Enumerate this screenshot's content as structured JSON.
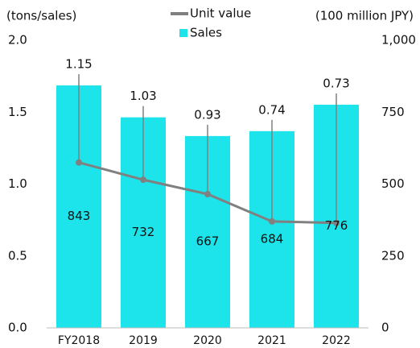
{
  "chart_data": {
    "type": "bar_line",
    "y_label": "(tons/sales)",
    "y2_label": "(100 million JPY)",
    "categories": [
      "FY2018",
      "2019",
      "2020",
      "2021",
      "2022"
    ],
    "series": [
      {
        "name": "Unit value",
        "type": "line",
        "color": "#808080",
        "axis": "y",
        "values": [
          1.15,
          1.03,
          0.93,
          0.74,
          0.73
        ]
      },
      {
        "name": "Sales",
        "type": "bar",
        "color": "#1de3ea",
        "axis": "y2",
        "values": [
          843,
          732,
          667,
          684,
          776
        ]
      }
    ],
    "ylim": [
      0,
      2
    ],
    "yticks": [
      {
        "value": 0,
        "label": "0.0"
      },
      0.5,
      {
        "value": 1,
        "label": "1.0"
      },
      1.5,
      {
        "value": 2,
        "label": "2.0"
      }
    ],
    "y2lim": [
      0,
      1000
    ],
    "y2ticks": [
      0,
      250,
      500,
      750,
      {
        "value": 1000,
        "label": "1,000"
      }
    ]
  }
}
